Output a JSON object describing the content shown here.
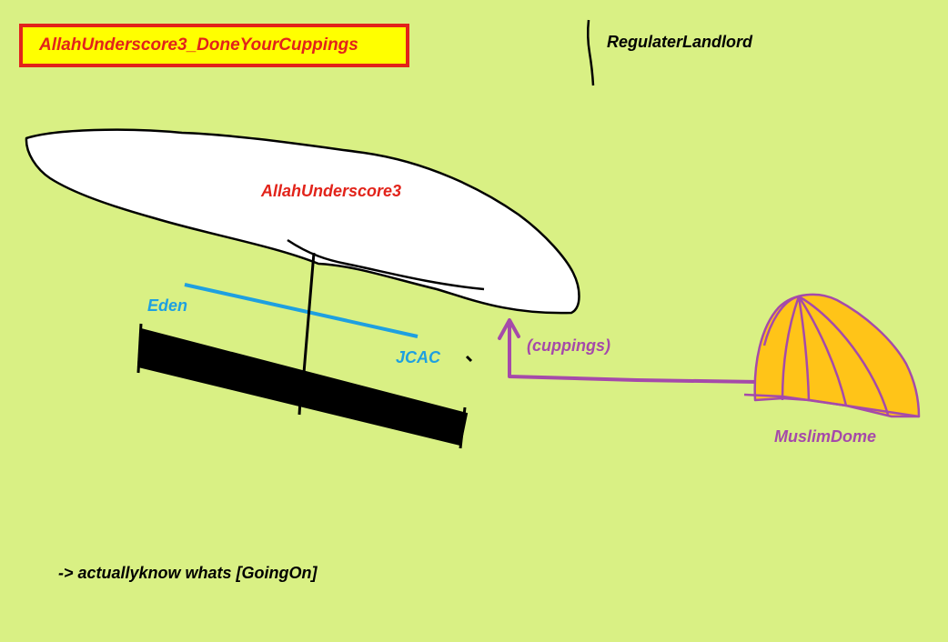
{
  "title": "AllahUnderscore3_DoneYourCuppings",
  "labels": {
    "regulater": "RegulaterLandlord",
    "blimp": "AllahUnderscore3",
    "eden": "Eden",
    "jcac": "JCAC",
    "cuppings": "(cuppings)",
    "dome": "MuslimDome",
    "footer": "-> actuallyknow whats [GoingOn]"
  },
  "colors": {
    "background": "#d9f084",
    "title_fill": "#ffff00",
    "title_text": "#e2231a",
    "red_label": "#e2231a",
    "blue": "#1ea0e0",
    "purple": "#a54aaa",
    "dome_fill": "#ffc418",
    "ink": "#000000",
    "blimp_fill": "#ffffff"
  }
}
